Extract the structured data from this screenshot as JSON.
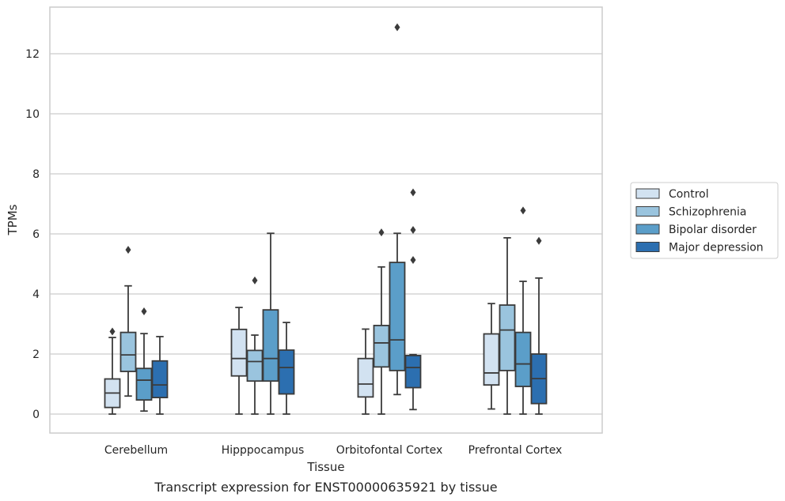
{
  "caption": "Transcript expression for ENST00000635921 by tissue",
  "chart_data": {
    "type": "box",
    "title": "",
    "xlabel": "Tissue",
    "ylabel": "TPMs",
    "ylim": [
      -0.63,
      13.4
    ],
    "yticks": [
      0,
      2,
      4,
      6,
      8,
      10,
      12
    ],
    "grid": "horizontal",
    "legend_position": "right",
    "categories": [
      "Cerebellum",
      "Hipppocampus",
      "Orbitofontal Cortex",
      "Prefrontal Cortex"
    ],
    "series": [
      {
        "name": "Control",
        "color": "#d2e2f1",
        "boxes": [
          {
            "whisker_low": 0.0,
            "q1": 0.22,
            "median": 0.7,
            "q3": 1.17,
            "whisker_high": 2.55,
            "outliers": [
              2.75
            ]
          },
          {
            "whisker_low": 0.0,
            "q1": 1.27,
            "median": 1.85,
            "q3": 2.82,
            "whisker_high": 3.55,
            "outliers": []
          },
          {
            "whisker_low": 0.0,
            "q1": 0.57,
            "median": 1.0,
            "q3": 1.85,
            "whisker_high": 2.83,
            "outliers": []
          },
          {
            "whisker_low": 0.17,
            "q1": 0.97,
            "median": 1.37,
            "q3": 2.67,
            "whisker_high": 3.68,
            "outliers": []
          }
        ]
      },
      {
        "name": "Schizophrenia",
        "color": "#9ac4de",
        "boxes": [
          {
            "whisker_low": 0.6,
            "q1": 1.42,
            "median": 1.97,
            "q3": 2.72,
            "whisker_high": 4.27,
            "outliers": [
              5.47
            ]
          },
          {
            "whisker_low": 0.0,
            "q1": 1.1,
            "median": 1.75,
            "q3": 2.12,
            "whisker_high": 2.63,
            "outliers": [
              4.45
            ]
          },
          {
            "whisker_low": 0.0,
            "q1": 1.57,
            "median": 2.37,
            "q3": 2.95,
            "whisker_high": 4.9,
            "outliers": [
              6.05
            ]
          },
          {
            "whisker_low": 0.0,
            "q1": 1.45,
            "median": 2.8,
            "q3": 3.63,
            "whisker_high": 5.87,
            "outliers": []
          }
        ]
      },
      {
        "name": "Bipolar disorder",
        "color": "#5b9ec9",
        "boxes": [
          {
            "whisker_low": 0.1,
            "q1": 0.47,
            "median": 1.13,
            "q3": 1.52,
            "whisker_high": 2.68,
            "outliers": [
              3.42
            ]
          },
          {
            "whisker_low": 0.0,
            "q1": 1.1,
            "median": 1.85,
            "q3": 3.47,
            "whisker_high": 6.02,
            "outliers": []
          },
          {
            "whisker_low": 0.65,
            "q1": 1.45,
            "median": 2.47,
            "q3": 5.05,
            "whisker_high": 6.02,
            "outliers": [
              12.88
            ]
          },
          {
            "whisker_low": 0.0,
            "q1": 0.92,
            "median": 1.67,
            "q3": 2.72,
            "whisker_high": 4.42,
            "outliers": [
              6.78
            ]
          }
        ]
      },
      {
        "name": "Major depression",
        "color": "#2c6fb0",
        "boxes": [
          {
            "whisker_low": 0.0,
            "q1": 0.55,
            "median": 0.97,
            "q3": 1.77,
            "whisker_high": 2.58,
            "outliers": []
          },
          {
            "whisker_low": 0.0,
            "q1": 0.67,
            "median": 1.55,
            "q3": 2.13,
            "whisker_high": 3.05,
            "outliers": []
          },
          {
            "whisker_low": 0.15,
            "q1": 0.88,
            "median": 1.55,
            "q3": 1.95,
            "whisker_high": 1.98,
            "outliers": [
              5.13,
              6.13,
              7.38
            ]
          },
          {
            "whisker_low": 0.0,
            "q1": 0.35,
            "median": 1.18,
            "q3": 2.0,
            "whisker_high": 4.53,
            "outliers": [
              5.77
            ]
          }
        ]
      }
    ]
  }
}
